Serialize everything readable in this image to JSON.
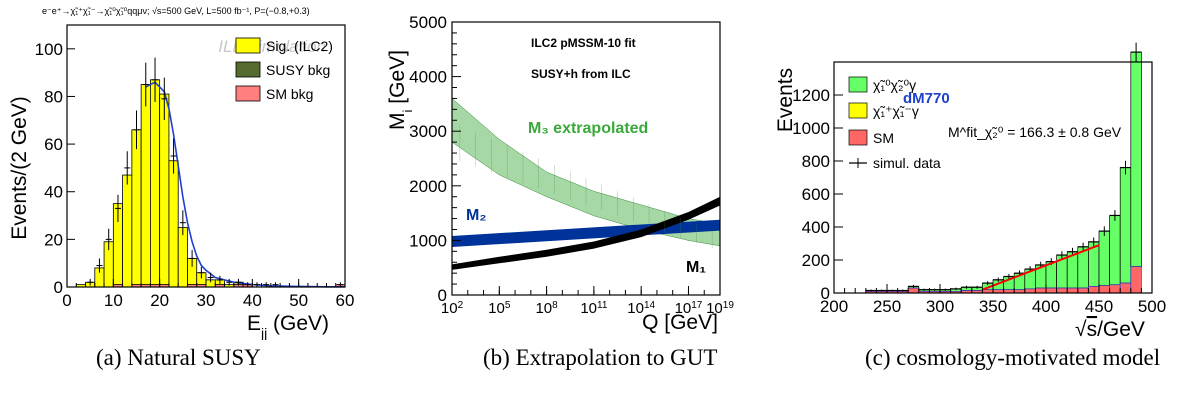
{
  "captions": [
    "(a) Natural SUSY",
    "(b) Extrapolation to GUT",
    "(c) cosmology-motivated model"
  ],
  "chart_data": [
    {
      "type": "bar",
      "title": "e⁻e⁺→χ̃₁⁺χ̃₁⁻→χ̃₁⁰χ̃₁⁰qqμν; √s=500 GeV, L=500 fb⁻¹, P=(−0.8,+0.3)",
      "watermark": "ILD simulation",
      "xlabel": "E_jj (GeV)",
      "ylabel": "Events/(2 GeV)",
      "xlim": [
        0,
        60
      ],
      "ylim": [
        0,
        110
      ],
      "xticks": [
        "0",
        "10",
        "20",
        "30",
        "40",
        "50",
        "60"
      ],
      "yticks": [
        "0",
        "20",
        "40",
        "60",
        "80",
        "100"
      ],
      "bin_edges": [
        2,
        4,
        6,
        8,
        10,
        12,
        14,
        16,
        18,
        20,
        22,
        24,
        26,
        28,
        30,
        32,
        34,
        36,
        38,
        40,
        42,
        44,
        46,
        48,
        50,
        52,
        54,
        56,
        58,
        60
      ],
      "series": [
        {
          "name": "Sig. (ILC2)",
          "color": "#ffff00",
          "values": [
            1,
            2,
            8,
            19,
            34,
            47,
            65,
            84,
            86,
            80,
            53,
            25,
            11,
            5,
            3,
            2,
            1,
            1,
            0,
            0,
            0,
            0,
            0,
            0,
            0,
            0,
            0,
            0,
            0
          ]
        },
        {
          "name": "SUSY bkg",
          "color": "#556b2f",
          "values": [
            0,
            0,
            0,
            0,
            0,
            0,
            0,
            0,
            0,
            0,
            0,
            0,
            0,
            0,
            0,
            0,
            0,
            0,
            0,
            0,
            0,
            0,
            0,
            0,
            0,
            0,
            0,
            0,
            0
          ]
        },
        {
          "name": "SM bkg",
          "color": "#ff7f7f",
          "values": [
            0,
            0,
            0,
            0,
            1,
            0,
            1,
            1,
            1,
            1,
            0,
            0,
            1,
            1,
            0,
            1,
            0,
            1,
            1,
            0,
            0,
            0,
            0,
            0,
            0,
            0,
            0,
            0,
            1
          ]
        }
      ],
      "data_points": {
        "x": [
          5,
          7,
          9,
          11,
          13,
          15,
          17,
          19,
          21,
          23,
          25,
          27,
          29,
          31,
          33,
          35,
          37,
          39,
          41,
          43,
          45,
          47,
          49,
          51,
          53,
          55,
          57,
          59
        ],
        "y": [
          2,
          9,
          20,
          33,
          50,
          66,
          85,
          87,
          79,
          55,
          27,
          12,
          6,
          4,
          3,
          2,
          2,
          1,
          1,
          1,
          1,
          0,
          0,
          0,
          0,
          0,
          0,
          1
        ],
        "err": [
          1.4,
          3,
          4.5,
          5.7,
          7,
          8.1,
          9.2,
          9.3,
          8.9,
          7.4,
          5.2,
          3.5,
          2.4,
          2,
          1.7,
          1.4,
          1.4,
          1,
          1,
          1,
          1,
          0,
          0,
          0,
          0,
          0,
          0,
          1
        ]
      },
      "fit_curve": {
        "x": [
          17,
          19,
          21,
          22,
          23,
          24,
          25,
          26,
          27,
          28,
          29,
          30,
          32,
          34,
          36,
          38,
          40,
          44,
          48,
          52,
          56,
          60
        ],
        "y": [
          84,
          86,
          82,
          75,
          64,
          51,
          38,
          27,
          19,
          13,
          9,
          7,
          4,
          3,
          2,
          1.5,
          1,
          0.5,
          0.3,
          0.2,
          0.1,
          0.1
        ]
      },
      "legend_position": "top-right"
    },
    {
      "type": "area",
      "title": "ILC2 pMSSM-10 fit",
      "subtitle": "SUSY+h from ILC",
      "xlabel": "Q [GeV]",
      "ylabel": "M_i [GeV]",
      "xscale": "log",
      "xlim": [
        100,
        1e+19
      ],
      "ylim": [
        0,
        5000
      ],
      "xticks": [
        "10^2",
        "10^5",
        "10^8",
        "10^11",
        "10^14",
        "10^17",
        "10^19"
      ],
      "yticks": [
        "0",
        "1000",
        "2000",
        "3000",
        "4000",
        "5000"
      ],
      "series": [
        {
          "name": "M₃ extrapolated",
          "color": "#5cb85c",
          "log10Q": [
            2,
            5,
            8,
            11,
            14,
            17,
            19
          ],
          "upper": [
            3600,
            2850,
            2250,
            1900,
            1650,
            1400,
            1300
          ],
          "lower": [
            2800,
            2200,
            1800,
            1450,
            1200,
            1000,
            900
          ]
        },
        {
          "name": "M₂",
          "color": "#003399",
          "log10Q": [
            2,
            19
          ],
          "upper": [
            1080,
            1380
          ],
          "lower": [
            880,
            1180
          ]
        },
        {
          "name": "M₁",
          "color": "#000000",
          "log10Q": [
            2,
            5,
            8,
            11,
            14,
            17,
            19
          ],
          "upper": [
            560,
            700,
            830,
            980,
            1200,
            1520,
            1800
          ],
          "lower": [
            460,
            580,
            700,
            850,
            1060,
            1380,
            1640
          ]
        }
      ]
    },
    {
      "type": "bar",
      "title": "dM770",
      "annotation": "M^fit_χ̃₂⁰ = 166.3 ± 0.8 GeV",
      "xlabel": "√s/GeV",
      "ylabel": "Events",
      "xlim": [
        200,
        500
      ],
      "ylim": [
        0,
        1400
      ],
      "xticks": [
        "200",
        "250",
        "300",
        "350",
        "400",
        "450",
        "500"
      ],
      "yticks": [
        "0",
        "200",
        "400",
        "600",
        "800",
        "1000",
        "1200"
      ],
      "bin_edges": [
        230,
        240,
        250,
        260,
        270,
        280,
        290,
        300,
        310,
        320,
        330,
        340,
        350,
        360,
        370,
        380,
        390,
        400,
        410,
        420,
        430,
        440,
        450,
        460,
        470,
        480,
        490
      ],
      "series": [
        {
          "name": "χ̃₁⁰χ̃₂⁰γ",
          "color": "#66ff66",
          "values": [
            5,
            5,
            5,
            5,
            10,
            10,
            10,
            10,
            15,
            20,
            20,
            40,
            60,
            80,
            100,
            120,
            140,
            160,
            200,
            220,
            250,
            270,
            330,
            420,
            700,
            1300
          ]
        },
        {
          "name": "χ̃₁⁺χ̃₁⁻γ",
          "color": "#ffff00",
          "values": [
            0,
            0,
            0,
            0,
            0,
            0,
            0,
            0,
            0,
            0,
            0,
            0,
            0,
            0,
            0,
            0,
            0,
            0,
            0,
            0,
            0,
            0,
            0,
            0,
            0,
            0
          ]
        },
        {
          "name": "SM",
          "color": "#ff6666",
          "values": [
            10,
            10,
            10,
            10,
            30,
            10,
            10,
            10,
            10,
            15,
            15,
            20,
            20,
            20,
            20,
            25,
            30,
            30,
            30,
            30,
            30,
            40,
            45,
            50,
            60,
            160
          ]
        }
      ],
      "data_label": "simul. data",
      "fit_line": {
        "x": [
          340,
          450
        ],
        "y": [
          20,
          290
        ],
        "color": "#ff0000"
      },
      "legend_position": "top-left"
    }
  ]
}
